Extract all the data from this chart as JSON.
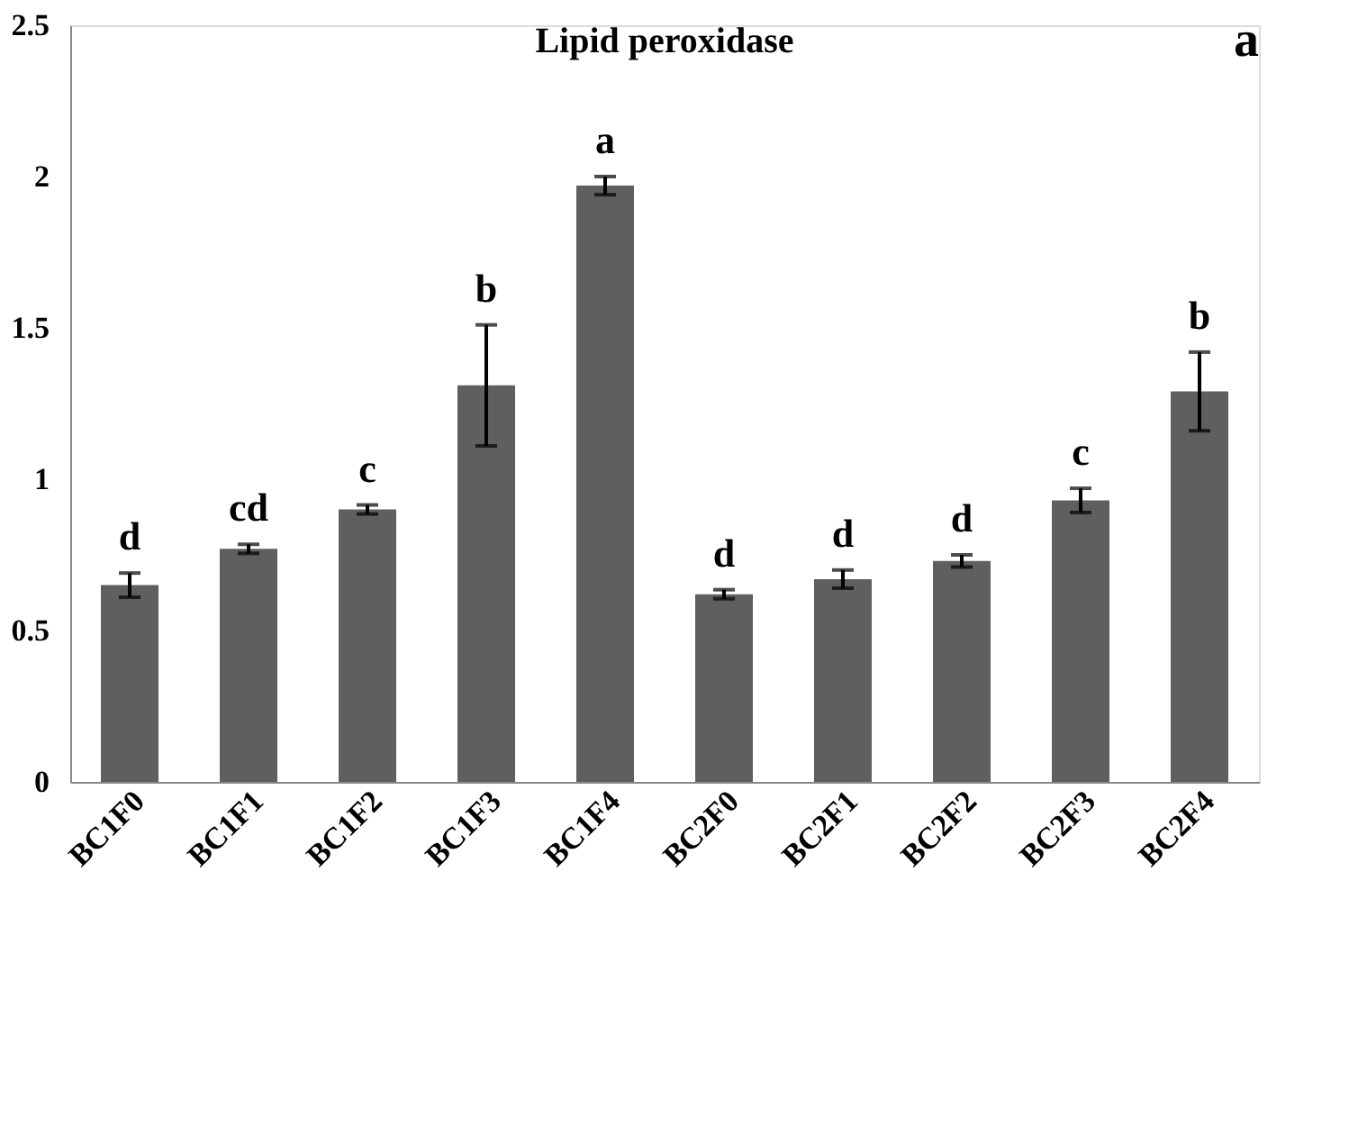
{
  "chart_data": {
    "type": "bar",
    "title": "Lipid peroxidase",
    "categories": [
      "BC1F0",
      "BC1F1",
      "BC1F2",
      "BC1F3",
      "BC1F4",
      "BC2F0",
      "BC2F1",
      "BC2F2",
      "BC2F3",
      "BC2F4"
    ],
    "values": [
      0.65,
      0.77,
      0.9,
      1.31,
      1.97,
      0.62,
      0.67,
      0.73,
      0.93,
      1.29
    ],
    "errors": [
      0.04,
      0.015,
      0.015,
      0.2,
      0.03,
      0.015,
      0.03,
      0.02,
      0.04,
      0.13
    ],
    "color": "#5f5f5f",
    "ylim": [
      0,
      2.5
    ],
    "yticks": [
      0,
      0.5,
      1,
      1.5,
      2,
      2.5
    ],
    "grid": false,
    "annotations": [
      {
        "text": "d",
        "x": "BC1F0",
        "y": 0.69
      },
      {
        "text": "cd",
        "x": "BC1F1",
        "y": 0.785
      },
      {
        "text": "c",
        "x": "BC1F2",
        "y": 0.915
      },
      {
        "text": "b",
        "x": "BC1F3",
        "y": 1.51
      },
      {
        "text": "a",
        "x": "BC1F4",
        "y": 2.0
      },
      {
        "text": "d",
        "x": "BC2F0",
        "y": 0.635
      },
      {
        "text": "d",
        "x": "BC2F1",
        "y": 0.7
      },
      {
        "text": "d",
        "x": "BC2F2",
        "y": 0.75
      },
      {
        "text": "c",
        "x": "BC2F3",
        "y": 0.97
      },
      {
        "text": "b",
        "x": "BC2F4",
        "y": 1.42
      },
      "a"
    ]
  }
}
